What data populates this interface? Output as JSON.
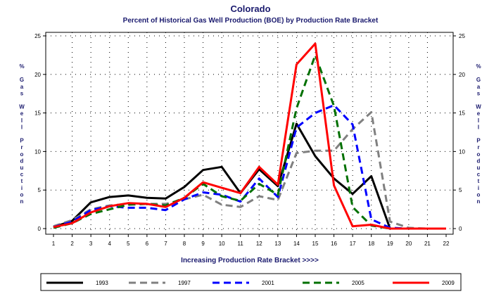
{
  "chart_data": {
    "type": "line",
    "title": "Colorado",
    "subtitle": "Percent of Historical Gas Well Production (BOE) by Production Rate Bracket",
    "xlabel": "Increasing Production Rate Bracket >>>>",
    "ylabel": "% Gas Well Production",
    "x": [
      1,
      2,
      3,
      4,
      5,
      6,
      7,
      8,
      9,
      10,
      11,
      12,
      13,
      14,
      15,
      16,
      17,
      18,
      19,
      20,
      21,
      22
    ],
    "xlim": [
      1,
      22
    ],
    "ylim": [
      0,
      25
    ],
    "yticks": [
      0,
      5,
      10,
      15,
      20,
      25
    ],
    "grid": true,
    "legend_position": "bottom",
    "series": [
      {
        "name": "1993",
        "color": "#000000",
        "dash": "solid",
        "values": [
          0.2,
          1.0,
          3.4,
          4.1,
          4.3,
          4.0,
          3.9,
          5.4,
          7.6,
          8.0,
          4.6,
          7.7,
          5.5,
          13.6,
          9.4,
          6.5,
          4.5,
          6.8,
          0.0,
          0.0,
          0.0,
          0.0
        ]
      },
      {
        "name": "1997",
        "color": "#808080",
        "dash": "dashed",
        "values": [
          0.3,
          1.1,
          2.5,
          3.0,
          3.2,
          3.2,
          3.2,
          3.8,
          4.4,
          3.1,
          2.8,
          4.2,
          3.7,
          9.8,
          10.1,
          10.1,
          12.9,
          15.1,
          0.9,
          0.1,
          0.0,
          0.0
        ]
      },
      {
        "name": "2001",
        "color": "#0000ff",
        "dash": "dashed",
        "values": [
          0.2,
          0.9,
          2.4,
          2.9,
          2.7,
          2.7,
          2.4,
          3.8,
          4.7,
          4.4,
          3.5,
          6.5,
          4.1,
          13.1,
          15.0,
          16.0,
          13.5,
          1.2,
          0.1,
          0.0,
          0.0,
          0.0
        ]
      },
      {
        "name": "2005",
        "color": "#007000",
        "dash": "dashed",
        "values": [
          0.1,
          0.7,
          1.9,
          2.5,
          3.1,
          3.2,
          3.0,
          4.0,
          5.8,
          4.2,
          3.6,
          5.8,
          4.4,
          15.6,
          22.5,
          15.9,
          2.8,
          0.4,
          0.0,
          0.0,
          0.0,
          0.0
        ]
      },
      {
        "name": "2009",
        "color": "#ff0000",
        "dash": "solid",
        "values": [
          0.2,
          0.7,
          2.1,
          2.9,
          3.3,
          3.2,
          2.8,
          4.0,
          6.0,
          5.3,
          4.6,
          8.0,
          5.7,
          21.3,
          24.0,
          5.6,
          0.3,
          0.5,
          0.0,
          0.0,
          0.0,
          0.0
        ]
      }
    ]
  }
}
